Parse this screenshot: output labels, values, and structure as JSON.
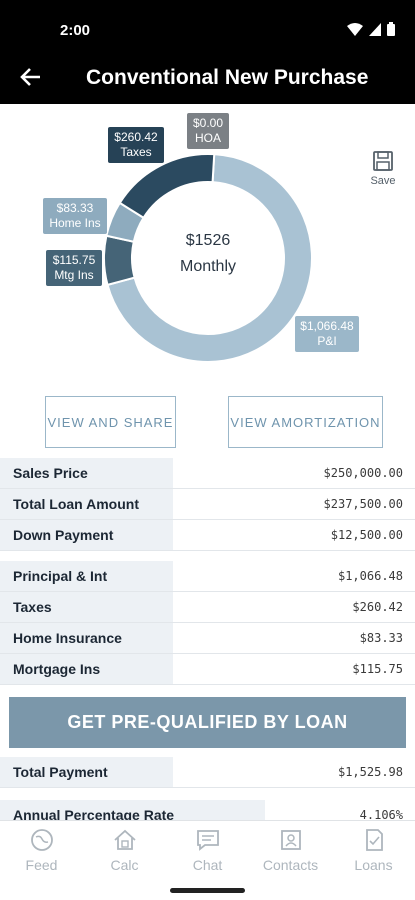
{
  "status": {
    "time": "2:00"
  },
  "header": {
    "title": "Conventional New Purchase"
  },
  "chart_data": {
    "type": "pie",
    "categories": [
      "P&I",
      "Mtg Ins",
      "Home Ins",
      "Taxes",
      "HOA"
    ],
    "values": [
      1066.48,
      115.75,
      83.33,
      260.42,
      0.0
    ],
    "labels": {
      "pi_value": "$1,066.48",
      "pi_name": "P&I",
      "mtg_value": "$115.75",
      "mtg_name": "Mtg Ins",
      "home_value": "$83.33",
      "home_name": "Home Ins",
      "taxes_value": "$260.42",
      "taxes_name": "Taxes",
      "hoa_value": "$0.00",
      "hoa_name": "HOA"
    },
    "center_value": "$1526",
    "center_label": "Monthly",
    "colors": [
      "#a9c2d3",
      "#456477",
      "#8eabbe",
      "#2b4a60",
      "#7a7f84"
    ]
  },
  "save": {
    "label": "Save"
  },
  "buttons": {
    "view_share": "VIEW AND SHARE",
    "view_amort": "VIEW AMORTIZATION",
    "cta": "GET PRE-QUALIFIED BY LOAN"
  },
  "loan": [
    {
      "label": "Sales Price",
      "value": "$250,000.00"
    },
    {
      "label": "Total Loan Amount",
      "value": "$237,500.00"
    },
    {
      "label": "Down Payment",
      "value": "$12,500.00"
    }
  ],
  "breakdown": [
    {
      "label": "Principal & Int",
      "value": "$1,066.48"
    },
    {
      "label": "Taxes",
      "value": "$260.42"
    },
    {
      "label": "Home Insurance",
      "value": "$83.33"
    },
    {
      "label": "Mortgage Ins",
      "value": "$115.75"
    }
  ],
  "totals": [
    {
      "label": "Total Payment",
      "value": "$1,525.98"
    },
    {
      "label": "Annual Percentage Rate",
      "value": "4.106%"
    }
  ],
  "tabs": [
    {
      "label": "Feed",
      "icon": "feed-icon"
    },
    {
      "label": "Calc",
      "icon": "calc-icon"
    },
    {
      "label": "Chat",
      "icon": "chat-icon"
    },
    {
      "label": "Contacts",
      "icon": "contacts-icon"
    },
    {
      "label": "Loans",
      "icon": "loans-icon"
    }
  ]
}
